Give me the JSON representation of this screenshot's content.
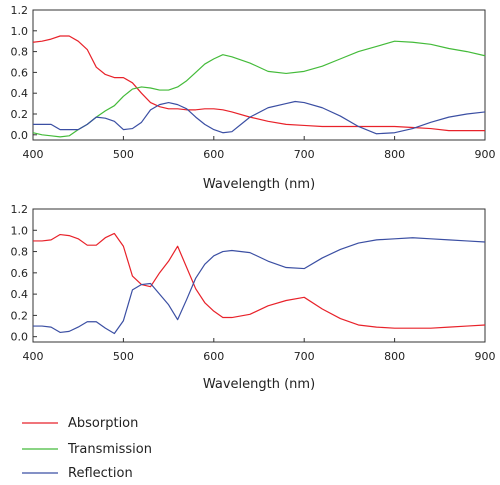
{
  "chart_data": [
    {
      "type": "line",
      "xlabel": "Wavelength (nm)",
      "ylabel": "",
      "xlim": [
        400,
        900
      ],
      "ylim": [
        -0.05,
        1.2
      ],
      "xticks": [
        400,
        500,
        600,
        700,
        800,
        900
      ],
      "yticks": [
        0.0,
        0.2,
        0.4,
        0.6,
        0.8,
        1.0,
        1.2
      ],
      "grid": false,
      "series": [
        {
          "name": "Absorption",
          "color": "#e8222a",
          "x": [
            400,
            410,
            420,
            430,
            440,
            450,
            460,
            470,
            480,
            490,
            500,
            510,
            520,
            530,
            540,
            550,
            560,
            570,
            580,
            590,
            600,
            610,
            620,
            640,
            660,
            680,
            700,
            720,
            740,
            760,
            780,
            800,
            820,
            840,
            860,
            880,
            900
          ],
          "y": [
            0.89,
            0.9,
            0.92,
            0.95,
            0.95,
            0.9,
            0.82,
            0.65,
            0.58,
            0.55,
            0.55,
            0.5,
            0.4,
            0.31,
            0.27,
            0.25,
            0.25,
            0.24,
            0.24,
            0.25,
            0.25,
            0.24,
            0.22,
            0.17,
            0.13,
            0.1,
            0.09,
            0.08,
            0.08,
            0.08,
            0.08,
            0.08,
            0.07,
            0.06,
            0.04,
            0.04,
            0.04
          ]
        },
        {
          "name": "Transmission",
          "color": "#44bb3a",
          "x": [
            400,
            410,
            420,
            430,
            440,
            450,
            460,
            470,
            480,
            490,
            500,
            510,
            520,
            530,
            540,
            550,
            560,
            570,
            580,
            590,
            600,
            610,
            620,
            640,
            660,
            680,
            700,
            720,
            740,
            760,
            780,
            800,
            820,
            840,
            860,
            880,
            900
          ],
          "y": [
            0.02,
            0.0,
            -0.01,
            -0.02,
            -0.01,
            0.05,
            0.1,
            0.17,
            0.23,
            0.28,
            0.37,
            0.44,
            0.46,
            0.45,
            0.43,
            0.43,
            0.46,
            0.52,
            0.6,
            0.68,
            0.73,
            0.77,
            0.75,
            0.69,
            0.61,
            0.59,
            0.61,
            0.66,
            0.73,
            0.8,
            0.85,
            0.9,
            0.89,
            0.87,
            0.83,
            0.8,
            0.76
          ]
        },
        {
          "name": "Reflection",
          "color": "#3b4fa3",
          "x": [
            400,
            410,
            420,
            430,
            440,
            450,
            460,
            470,
            480,
            490,
            500,
            510,
            520,
            530,
            540,
            550,
            560,
            570,
            580,
            590,
            600,
            610,
            620,
            640,
            660,
            680,
            690,
            700,
            720,
            740,
            760,
            780,
            800,
            820,
            840,
            860,
            880,
            900
          ],
          "y": [
            0.1,
            0.1,
            0.1,
            0.05,
            0.05,
            0.05,
            0.1,
            0.17,
            0.16,
            0.13,
            0.05,
            0.06,
            0.12,
            0.24,
            0.29,
            0.31,
            0.29,
            0.25,
            0.17,
            0.1,
            0.05,
            0.02,
            0.03,
            0.17,
            0.26,
            0.3,
            0.32,
            0.31,
            0.26,
            0.18,
            0.08,
            0.01,
            0.02,
            0.06,
            0.12,
            0.17,
            0.2,
            0.22
          ]
        }
      ]
    },
    {
      "type": "line",
      "xlabel": "Wavelength (nm)",
      "ylabel": "",
      "xlim": [
        400,
        900
      ],
      "ylim": [
        -0.05,
        1.2
      ],
      "xticks": [
        400,
        500,
        600,
        700,
        800,
        900
      ],
      "yticks": [
        0.0,
        0.2,
        0.4,
        0.6,
        0.8,
        1.0,
        1.2
      ],
      "grid": false,
      "series": [
        {
          "name": "Absorption",
          "color": "#e8222a",
          "x": [
            400,
            410,
            420,
            430,
            440,
            450,
            460,
            470,
            480,
            490,
            500,
            510,
            520,
            530,
            540,
            550,
            560,
            570,
            580,
            590,
            600,
            610,
            620,
            640,
            660,
            680,
            700,
            720,
            740,
            760,
            780,
            800,
            820,
            840,
            860,
            880,
            900
          ],
          "y": [
            0.9,
            0.9,
            0.91,
            0.96,
            0.95,
            0.92,
            0.86,
            0.86,
            0.93,
            0.97,
            0.85,
            0.57,
            0.49,
            0.47,
            0.6,
            0.71,
            0.85,
            0.65,
            0.45,
            0.32,
            0.24,
            0.18,
            0.18,
            0.21,
            0.29,
            0.34,
            0.37,
            0.26,
            0.17,
            0.11,
            0.09,
            0.08,
            0.08,
            0.08,
            0.09,
            0.1,
            0.11
          ]
        },
        {
          "name": "Reflection",
          "color": "#3b4fa3",
          "x": [
            400,
            410,
            420,
            430,
            440,
            450,
            460,
            470,
            480,
            490,
            500,
            510,
            520,
            530,
            540,
            550,
            560,
            570,
            580,
            590,
            600,
            610,
            620,
            640,
            660,
            680,
            700,
            720,
            740,
            760,
            780,
            800,
            820,
            840,
            860,
            880,
            900
          ],
          "y": [
            0.1,
            0.1,
            0.09,
            0.04,
            0.05,
            0.09,
            0.14,
            0.14,
            0.08,
            0.03,
            0.15,
            0.44,
            0.49,
            0.5,
            0.4,
            0.3,
            0.16,
            0.35,
            0.55,
            0.68,
            0.76,
            0.8,
            0.81,
            0.79,
            0.71,
            0.65,
            0.64,
            0.74,
            0.82,
            0.88,
            0.91,
            0.92,
            0.93,
            0.92,
            0.91,
            0.9,
            0.89
          ]
        }
      ]
    }
  ],
  "legend": {
    "placement": "bottom-left",
    "items": [
      {
        "label": "Absorption",
        "color": "#e8222a"
      },
      {
        "label": "Transmission",
        "color": "#44bb3a"
      },
      {
        "label": "Reflection",
        "color": "#3b4fa3"
      }
    ]
  }
}
